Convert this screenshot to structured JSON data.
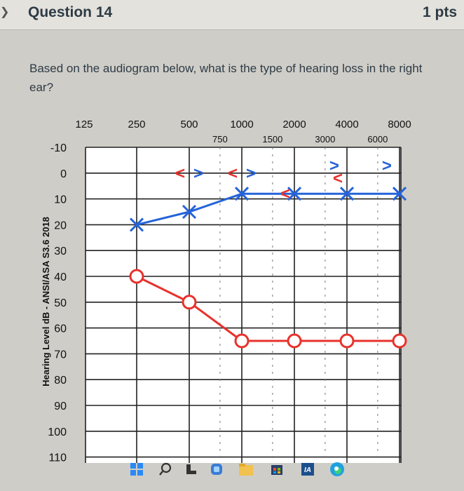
{
  "header": {
    "title": "Question 14",
    "points": "1 pts"
  },
  "question": {
    "text": "Based on the audiogram below, what is the type of hearing loss in the right ear?"
  },
  "chart_data": {
    "type": "line",
    "top_frequencies": [
      "125",
      "250",
      "500",
      "1000",
      "2000",
      "4000",
      "8000"
    ],
    "inter_frequencies": [
      "750",
      "1500",
      "3000",
      "6000"
    ],
    "ylabel": "Hearing Level dB - ANSI/ASA S3.6 2018",
    "y_tick_labels": [
      "-10",
      "0",
      "10",
      "20",
      "30",
      "40",
      "50",
      "60",
      "70",
      "80",
      "90",
      "100",
      "110"
    ],
    "ylim": [
      -10,
      110
    ],
    "y_reversed": true,
    "grid": true,
    "series": [
      {
        "name": "",
        "marker": "circle",
        "color": "#e8322c",
        "x": [
          250,
          500,
          1000,
          2000,
          4000,
          8000
        ],
        "values": [
          40,
          50,
          65,
          65,
          65,
          65
        ]
      },
      {
        "name": "",
        "marker": "x",
        "color": "#2563d9",
        "x": [
          250,
          500,
          1000,
          2000,
          4000,
          8000
        ],
        "values": [
          20,
          15,
          8,
          8,
          8,
          8
        ]
      }
    ],
    "bone_markers": [
      {
        "symbol": "<",
        "x": 500,
        "value": 0,
        "color": "#e8322c"
      },
      {
        "symbol": ">",
        "x": 500,
        "value": 0,
        "color": "#2563d9"
      },
      {
        "symbol": "<",
        "x": 1000,
        "value": 0,
        "color": "#e8322c"
      },
      {
        "symbol": ">",
        "x": 1000,
        "value": 0,
        "color": "#2563d9"
      },
      {
        "symbol": "<",
        "x": 2000,
        "value": 8,
        "color": "#e8322c"
      },
      {
        "symbol": ">",
        "x": 3000,
        "value": -3,
        "color": "#2563d9"
      },
      {
        "symbol": "<",
        "x": 4000,
        "value": 2,
        "color": "#e8322c"
      },
      {
        "symbol": ">",
        "x": 6000,
        "value": -3,
        "color": "#2563d9"
      }
    ]
  },
  "taskbar": {
    "icons": [
      "windows-icon",
      "search-icon",
      "task-view-icon",
      "widgets-icon",
      "file-explorer-icon",
      "store-icon",
      "app-icon",
      "edge-icon"
    ]
  }
}
